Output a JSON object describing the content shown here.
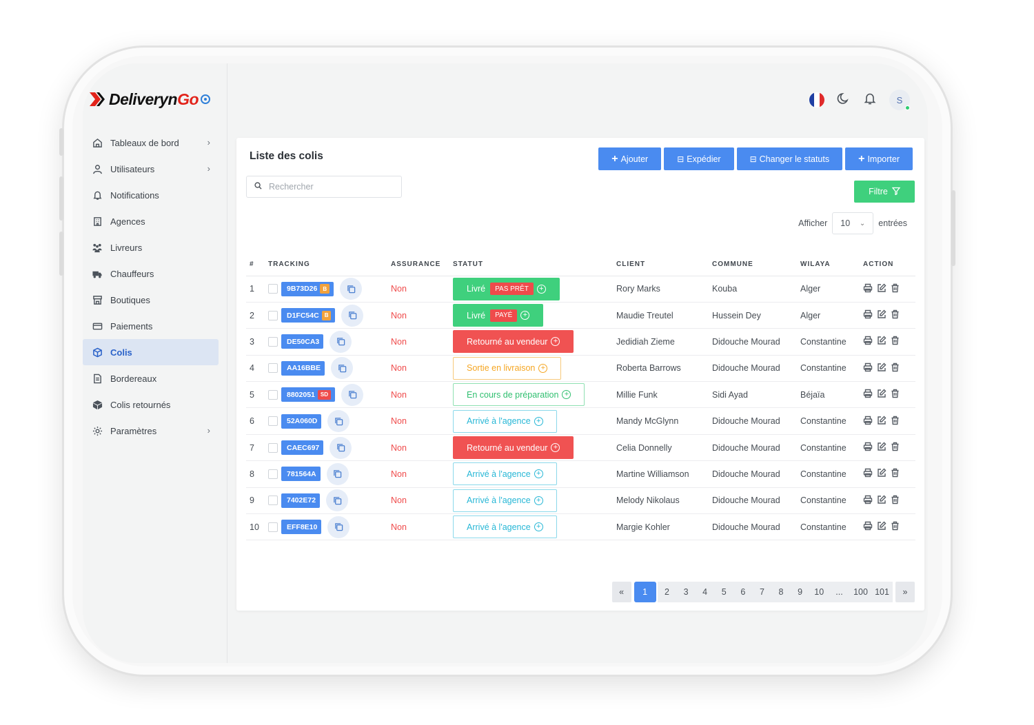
{
  "brand": {
    "name_main": "Deliveryn",
    "name_accent": "Go"
  },
  "header": {
    "avatar_initial": "S",
    "flag_colors": [
      "#1f3fa3",
      "#ffffff",
      "#e02a2a"
    ]
  },
  "sidebar": {
    "items": [
      {
        "label": "Tableaux de bord",
        "icon": "home-icon",
        "chevron": true
      },
      {
        "label": "Utilisateurs",
        "icon": "user-icon",
        "chevron": true
      },
      {
        "label": "Notifications",
        "icon": "bell-icon",
        "chevron": false
      },
      {
        "label": "Agences",
        "icon": "building-icon",
        "chevron": false
      },
      {
        "label": "Livreurs",
        "icon": "people-icon",
        "chevron": false
      },
      {
        "label": "Chauffeurs",
        "icon": "truck-icon",
        "chevron": false
      },
      {
        "label": "Boutiques",
        "icon": "shop-icon",
        "chevron": false
      },
      {
        "label": "Paiements",
        "icon": "card-icon",
        "chevron": false
      },
      {
        "label": "Colis",
        "icon": "box-icon",
        "chevron": false,
        "active": true
      },
      {
        "label": "Bordereaux",
        "icon": "document-icon",
        "chevron": false
      },
      {
        "label": "Colis retournés",
        "icon": "return-box-icon",
        "chevron": false
      },
      {
        "label": "Paramètres",
        "icon": "gear-icon",
        "chevron": true
      }
    ]
  },
  "main": {
    "title": "Liste des colis",
    "buttons": {
      "add": "Ajouter",
      "ship": "Expédier",
      "change_status": "Changer le statuts",
      "import": "Importer"
    },
    "search_placeholder": "Rechercher",
    "filter_label": "Filtre",
    "show_label": "Afficher",
    "show_value": "10",
    "entries_label": "entrées",
    "columns": {
      "num": "#",
      "tracking": "TRACKING",
      "assurance": "ASSURANCE",
      "statut": "STATUT",
      "client": "CLIENT",
      "commune": "COMMUNE",
      "wilaya": "WILAYA",
      "action": "ACTION"
    },
    "rows": [
      {
        "num": "1",
        "tracking": "9B73D26",
        "tag": "B",
        "assurance": "Non",
        "status": "Livré",
        "status_sub": "PAS PRÊT",
        "client": "Rory Marks",
        "commune": "Kouba",
        "wilaya": "Alger"
      },
      {
        "num": "2",
        "tracking": "D1FC54C",
        "tag": "B",
        "assurance": "Non",
        "status": "Livré",
        "status_sub": "PAYÉ",
        "client": "Maudie Treutel",
        "commune": "Hussein Dey",
        "wilaya": "Alger"
      },
      {
        "num": "3",
        "tracking": "DE50CA3",
        "tag": "",
        "assurance": "Non",
        "status": "Retourné au vendeur",
        "status_sub": "",
        "client": "Jedidiah Zieme",
        "commune": "Didouche Mourad",
        "wilaya": "Constantine"
      },
      {
        "num": "4",
        "tracking": "AA16BBE",
        "tag": "",
        "assurance": "Non",
        "status": "Sortie en livraison",
        "status_sub": "",
        "client": "Roberta Barrows",
        "commune": "Didouche Mourad",
        "wilaya": "Constantine"
      },
      {
        "num": "5",
        "tracking": "8802051",
        "tag": "SD",
        "assurance": "Non",
        "status": "En cours de préparation",
        "status_sub": "",
        "client": "Millie Funk",
        "commune": "Sidi Ayad",
        "wilaya": "Béjaïa"
      },
      {
        "num": "6",
        "tracking": "52A060D",
        "tag": "",
        "assurance": "Non",
        "status": "Arrivé à l'agence",
        "status_sub": "",
        "client": "Mandy McGlynn",
        "commune": "Didouche Mourad",
        "wilaya": "Constantine"
      },
      {
        "num": "7",
        "tracking": "CAEC697",
        "tag": "",
        "assurance": "Non",
        "status": "Retourné au vendeur",
        "status_sub": "",
        "client": "Celia Donnelly",
        "commune": "Didouche Mourad",
        "wilaya": "Constantine"
      },
      {
        "num": "8",
        "tracking": "781564A",
        "tag": "",
        "assurance": "Non",
        "status": "Arrivé à l'agence",
        "status_sub": "",
        "client": "Martine Williamson",
        "commune": "Didouche Mourad",
        "wilaya": "Constantine"
      },
      {
        "num": "9",
        "tracking": "7402E72",
        "tag": "",
        "assurance": "Non",
        "status": "Arrivé à l'agence",
        "status_sub": "",
        "client": "Melody Nikolaus",
        "commune": "Didouche Mourad",
        "wilaya": "Constantine"
      },
      {
        "num": "10",
        "tracking": "EFF8E10",
        "tag": "",
        "assurance": "Non",
        "status": "Arrivé à l'agence",
        "status_sub": "",
        "client": "Margie Kohler",
        "commune": "Didouche Mourad",
        "wilaya": "Constantine"
      }
    ],
    "pagination": {
      "prev": "«",
      "next": "»",
      "current": "1",
      "pages": [
        "2",
        "3",
        "4",
        "5",
        "6",
        "7",
        "8",
        "9",
        "10",
        "...",
        "100",
        "101"
      ]
    }
  },
  "colors": {
    "primary": "#4a8bf0",
    "success": "#3fd07d",
    "danger": "#f05252",
    "warning": "#f5a623",
    "info": "#27b7d6"
  }
}
